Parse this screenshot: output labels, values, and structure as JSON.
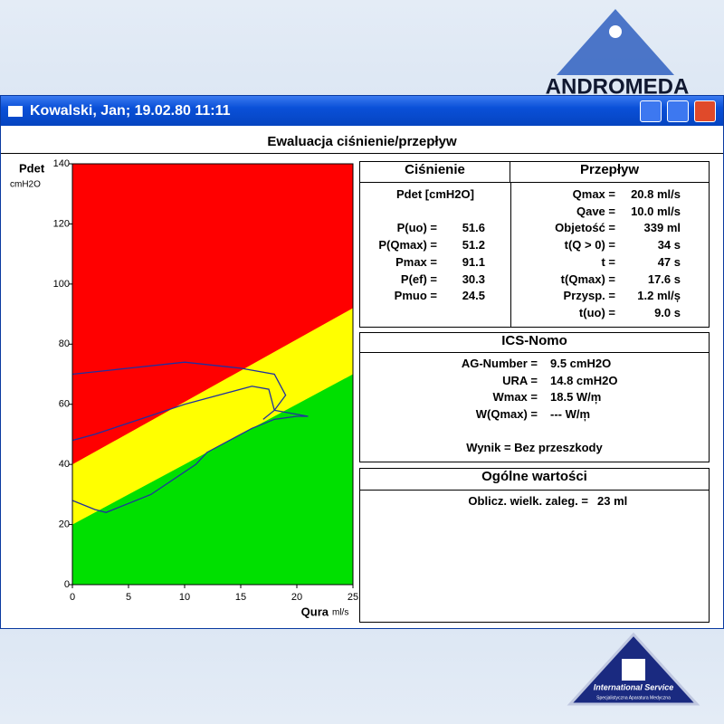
{
  "window_title": "Kowalski, Jan; 19.02.80 11:11",
  "panel_title": "Ewaluacja ciśnienie/przepływ",
  "logo_top": "ANDROMEDA",
  "logo_bottom": {
    "name": "International Service",
    "tagline": "Specjalistyczna Aparatura Medyczna"
  },
  "chart_data": {
    "type": "line",
    "y_label": "Pdet",
    "y_unit": "cmH2O",
    "x_label": "Qura",
    "x_unit": "ml/s",
    "xlim": [
      0,
      25
    ],
    "ylim": [
      0,
      140
    ],
    "xticks": [
      0,
      5,
      10,
      15,
      20,
      25
    ],
    "yticks": [
      0,
      20,
      40,
      60,
      80,
      100,
      120,
      140
    ],
    "plot_color": "#ff0000",
    "zones": [
      {
        "color": "#ffff00",
        "from": [
          0,
          40
        ],
        "to": [
          25,
          92
        ]
      },
      {
        "color": "#00e000",
        "from": [
          0,
          20
        ],
        "to": [
          25,
          70
        ]
      }
    ],
    "x": [
      0,
      2,
      3,
      5,
      7,
      9,
      11,
      12,
      14,
      16,
      18,
      20,
      21,
      18,
      17.5,
      16,
      14,
      10,
      6,
      2,
      0,
      null,
      0,
      5,
      10,
      15,
      18,
      19,
      18,
      17
    ],
    "series": [
      {
        "color": "#2030a0",
        "values": [
          28,
          25,
          24,
          27,
          30,
          35,
          40,
          44,
          48,
          52,
          55,
          56,
          56,
          58,
          65,
          66,
          64,
          60,
          55,
          50,
          48,
          null,
          70,
          72,
          74,
          72,
          70,
          63,
          58,
          55
        ]
      }
    ]
  },
  "pressure": {
    "title": "Ciśnienie",
    "header": "Pdet [cmH2O]",
    "rows": [
      [
        "P(uo) =",
        "51.6"
      ],
      [
        "P(Qmax) =",
        "51.2"
      ],
      [
        "Pmax =",
        "91.1"
      ],
      [
        "P(ef) =",
        "30.3"
      ],
      [
        "Pmuo =",
        "24.5"
      ]
    ]
  },
  "flow": {
    "title": "Przepływ",
    "rows": [
      [
        "Qmax =",
        "20.8 ml/s"
      ],
      [
        "Qave =",
        "10.0 ml/s"
      ],
      [
        "Objetość =",
        "339 ml"
      ],
      [
        "t(Q > 0) =",
        "34 s"
      ],
      [
        "t =",
        "47 s"
      ],
      [
        "t(Qmax) =",
        "17.6 s"
      ],
      [
        "Przysp. =",
        "1.2 ml/ș"
      ],
      [
        "t(uo) =",
        "9.0 s"
      ]
    ]
  },
  "ics": {
    "title": "ICS-Nomo",
    "rows": [
      [
        "AG-Number =",
        "9.5 cmH2O"
      ],
      [
        "URA =",
        "14.8 cmH2O"
      ],
      [
        "Wmax =",
        "18.5 W/m̦"
      ],
      [
        "W(Qmax) =",
        "--- W/m̦"
      ]
    ],
    "result": "Wynik = Bez przeszkody"
  },
  "general": {
    "title": "Ogólne wartości",
    "rows": [
      [
        "Oblicz. wielk. zaleg. =",
        "23 ml"
      ]
    ]
  }
}
